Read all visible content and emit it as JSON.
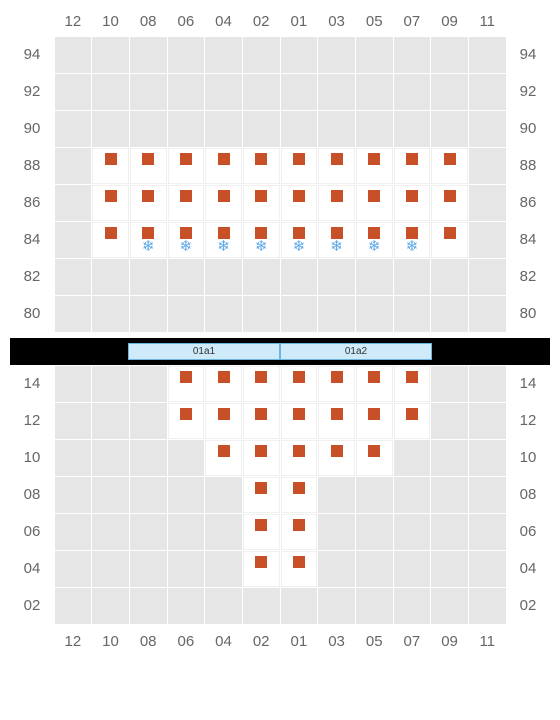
{
  "colors": {
    "seat": "#c75028",
    "snowflake": "#5da9e8",
    "divider_bg": "#cfeaf9",
    "divider_border": "#6db4e0",
    "grid_cell": "#e6e6e6"
  },
  "columns": [
    "12",
    "10",
    "08",
    "06",
    "04",
    "02",
    "01",
    "03",
    "05",
    "07",
    "09",
    "11"
  ],
  "upper": {
    "rows": [
      "94",
      "92",
      "90",
      "88",
      "86",
      "84",
      "82",
      "80"
    ],
    "seats": {
      "88": [
        1,
        2,
        3,
        4,
        5,
        6,
        7,
        8,
        9,
        10
      ],
      "86": [
        1,
        2,
        3,
        4,
        5,
        6,
        7,
        8,
        9,
        10
      ],
      "84": [
        1,
        2,
        3,
        4,
        5,
        6,
        7,
        8,
        9,
        10
      ]
    },
    "snowflakes": {
      "84": [
        2,
        3,
        4,
        5,
        6,
        7,
        8,
        9
      ]
    }
  },
  "divider": {
    "labels": [
      "01a1",
      "01a2"
    ]
  },
  "lower": {
    "rows": [
      "14",
      "12",
      "10",
      "08",
      "06",
      "04",
      "02"
    ],
    "seats": {
      "14": [
        3,
        4,
        5,
        6,
        7,
        8,
        9
      ],
      "12": [
        3,
        4,
        5,
        6,
        7,
        8,
        9
      ],
      "10": [
        4,
        5,
        6,
        7,
        8
      ],
      "08": [
        5,
        6
      ],
      "06": [
        5,
        6
      ],
      "04": [
        5,
        6
      ]
    }
  }
}
